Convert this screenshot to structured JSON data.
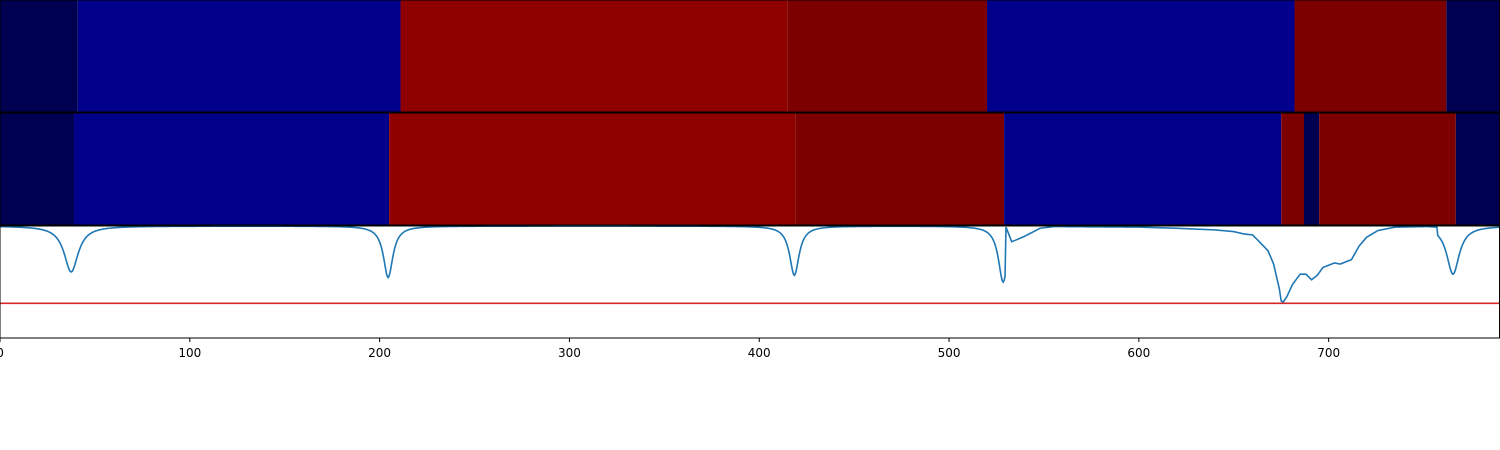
{
  "chart_data": {
    "type": "heatmap",
    "x_range": [
      0,
      790
    ],
    "x_ticks": [
      0,
      100,
      200,
      300,
      400,
      500,
      600,
      700
    ],
    "x_tick_labels": [
      "0",
      "100",
      "200",
      "300",
      "400",
      "500",
      "600",
      "700"
    ],
    "color_scale": {
      "dark-navy": "#000050",
      "blue": "#00008b",
      "red": "#8f0000",
      "dark-red": "#7d0000"
    },
    "rows": [
      {
        "segments": [
          {
            "start": 0,
            "end": 41,
            "class": "dark-navy"
          },
          {
            "start": 41,
            "end": 211,
            "class": "blue"
          },
          {
            "start": 211,
            "end": 415,
            "class": "red"
          },
          {
            "start": 415,
            "end": 520,
            "class": "dark-red"
          },
          {
            "start": 520,
            "end": 682,
            "class": "blue"
          },
          {
            "start": 682,
            "end": 762,
            "class": "dark-red"
          },
          {
            "start": 762,
            "end": 790,
            "class": "dark-navy"
          }
        ]
      },
      {
        "segments": [
          {
            "start": 0,
            "end": 39,
            "class": "dark-navy"
          },
          {
            "start": 39,
            "end": 205,
            "class": "blue"
          },
          {
            "start": 205,
            "end": 419,
            "class": "red"
          },
          {
            "start": 419,
            "end": 529,
            "class": "dark-red"
          },
          {
            "start": 529,
            "end": 675,
            "class": "blue"
          },
          {
            "start": 675,
            "end": 687,
            "class": "dark-red"
          },
          {
            "start": 687,
            "end": 695,
            "class": "dark-navy"
          },
          {
            "start": 695,
            "end": 767,
            "class": "dark-red"
          },
          {
            "start": 767,
            "end": 790,
            "class": "dark-navy"
          }
        ]
      }
    ],
    "line_panel": {
      "y_range": [
        0,
        1
      ],
      "threshold": 0.31,
      "threshold_color": "#d62728",
      "line_color": "#1f77b4",
      "baseline": 1.0,
      "dips": [
        {
          "x": 37.5,
          "y": 0.59,
          "width": 4.5
        },
        {
          "x": 204.5,
          "y": 0.54,
          "width": 3.0
        },
        {
          "x": 418.5,
          "y": 0.56,
          "width": 3.0
        },
        {
          "x": 528.5,
          "y": 0.5,
          "width": 3.0
        },
        {
          "x": 765.5,
          "y": 0.57,
          "width": 4.0
        }
      ],
      "segment": [
        [
          530,
          0.99
        ],
        [
          533,
          0.86
        ],
        [
          536,
          0.88
        ],
        [
          540,
          0.91
        ],
        [
          548,
          0.98
        ],
        [
          555,
          0.995
        ],
        [
          600,
          0.99
        ],
        [
          620,
          0.98
        ],
        [
          640,
          0.965
        ],
        [
          650,
          0.95
        ],
        [
          655,
          0.93
        ],
        [
          660,
          0.92
        ],
        [
          664,
          0.85
        ],
        [
          668,
          0.78
        ],
        [
          671,
          0.66
        ],
        [
          674,
          0.44
        ],
        [
          675,
          0.33
        ],
        [
          676,
          0.32
        ],
        [
          678,
          0.37
        ],
        [
          681,
          0.48
        ],
        [
          685,
          0.57
        ],
        [
          688,
          0.57
        ],
        [
          691,
          0.52
        ],
        [
          694,
          0.56
        ],
        [
          697,
          0.63
        ],
        [
          700,
          0.65
        ],
        [
          703,
          0.67
        ],
        [
          706,
          0.66
        ],
        [
          709,
          0.68
        ],
        [
          712,
          0.7
        ],
        [
          716,
          0.82
        ],
        [
          720,
          0.9
        ],
        [
          726,
          0.96
        ],
        [
          735,
          0.99
        ],
        [
          752,
          0.995
        ],
        [
          757,
          0.99
        ]
      ]
    }
  }
}
